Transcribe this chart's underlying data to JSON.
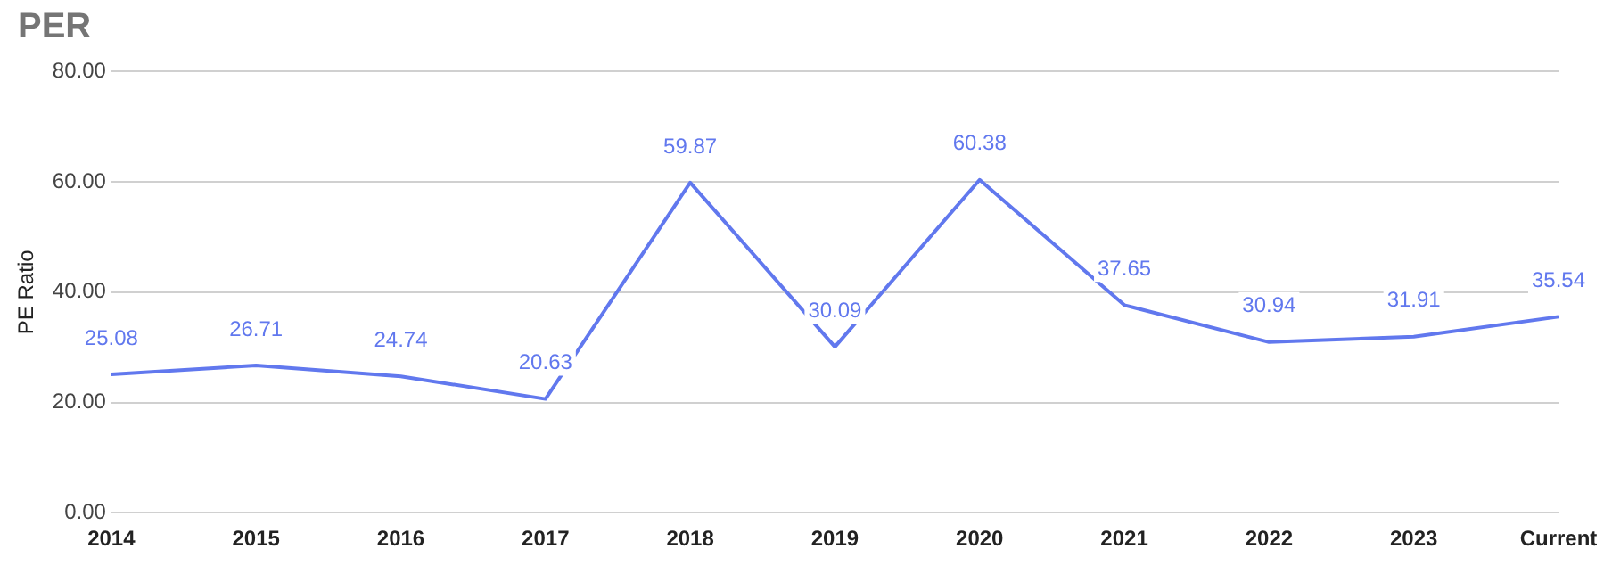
{
  "chart_data": {
    "type": "line",
    "title": "PER",
    "ylabel": "PE Ratio",
    "categories": [
      "2014",
      "2015",
      "2016",
      "2017",
      "2018",
      "2019",
      "2020",
      "2021",
      "2022",
      "2023",
      "Current"
    ],
    "series": [
      {
        "color": "#6178ee",
        "values": [
          25.08,
          26.71,
          24.74,
          20.63,
          59.87,
          30.09,
          60.38,
          37.65,
          30.94,
          31.91,
          35.54
        ]
      }
    ],
    "ylim": [
      0,
      80
    ],
    "yticks": [
      {
        "value": 0,
        "label": "0.00"
      },
      {
        "value": 20,
        "label": "20.00"
      },
      {
        "value": 40,
        "label": "40.00"
      },
      {
        "value": 60,
        "label": "60.00"
      },
      {
        "value": 80,
        "label": "80.00"
      }
    ],
    "grid": "y",
    "legend": false,
    "marker": "none",
    "line_style": "solid",
    "data_labels": true
  }
}
